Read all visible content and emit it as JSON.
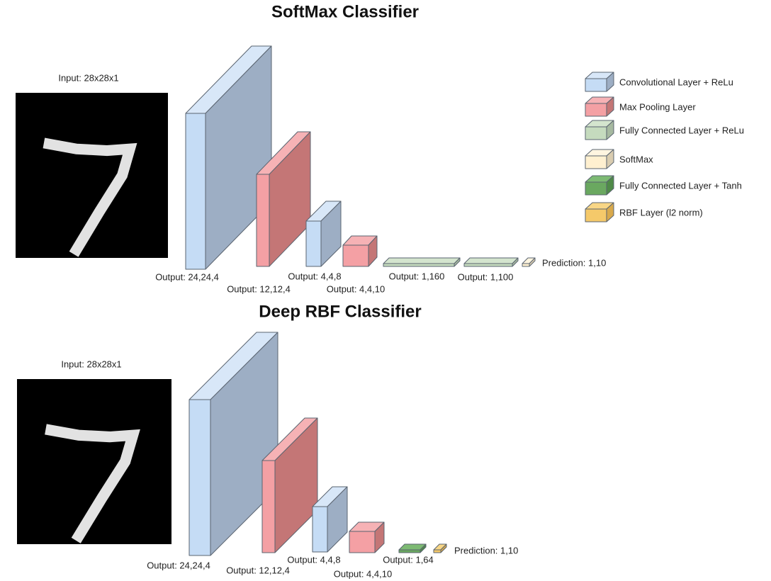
{
  "diagrams": [
    {
      "title": "SoftMax Classifier",
      "input_label": "Input: 28x28x1",
      "layers": [
        {
          "label": "Output: 24,24,4"
        },
        {
          "label": "Output: 12,12,4"
        },
        {
          "label": "Output: 4,4,8"
        },
        {
          "label": "Output: 4,4,10"
        },
        {
          "label": "Output: 1,160"
        },
        {
          "label": "Output: 1,100"
        },
        {
          "label": "Prediction: 1,10"
        }
      ]
    },
    {
      "title": "Deep RBF Classifier",
      "input_label": "Input: 28x28x1",
      "layers": [
        {
          "label": "Output: 24,24,4"
        },
        {
          "label": "Output: 12,12,4"
        },
        {
          "label": "Output: 4,4,8"
        },
        {
          "label": "Output: 4,4,10"
        },
        {
          "label": "Output: 1,64"
        },
        {
          "label": "Prediction: 1,10"
        }
      ]
    }
  ],
  "legend": [
    {
      "label": "Convolutional Layer + ReLu"
    },
    {
      "label": "Max Pooling Layer"
    },
    {
      "label": "Fully Connected Layer + ReLu"
    },
    {
      "label": "SoftMax"
    },
    {
      "label": "Fully Connected Layer + Tanh"
    },
    {
      "label": "RBF Layer (l2 norm)"
    }
  ]
}
